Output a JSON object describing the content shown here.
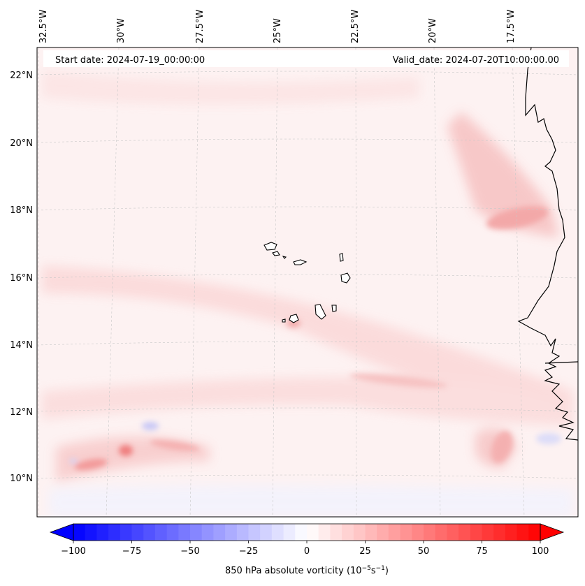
{
  "header": {
    "start_date": "Start date: 2024-07-19_00:00:00",
    "valid_date": "Valid_date: 2024-07-20T10:00:00.00"
  },
  "map": {
    "longitude_labels": [
      "32.5°W",
      "30°W",
      "27.5°W",
      "25°W",
      "22.5°W",
      "20°W",
      "17.5°W"
    ],
    "latitude_labels": [
      "22°N",
      "20°N",
      "18°N",
      "16°N",
      "14°N",
      "12°N",
      "10°N"
    ],
    "colors": {
      "negative_max": "#0000ff",
      "neutral": "#ffffff",
      "positive_max": "#ff0000",
      "coastline": "#000000",
      "gridline": "#b0b0b0"
    }
  },
  "colorbar": {
    "tick_labels": [
      "−100",
      "−75",
      "−50",
      "−25",
      "0",
      "25",
      "50",
      "75",
      "100"
    ],
    "tick_values": [
      -100,
      -75,
      -50,
      -25,
      0,
      25,
      50,
      75,
      100
    ],
    "vmin": -100,
    "vmax": 100,
    "label_main": "850 hPa absolute vorticity (10",
    "label_exp1": "−5",
    "label_mid": "s",
    "label_exp2": "−1",
    "label_end": ")"
  }
}
